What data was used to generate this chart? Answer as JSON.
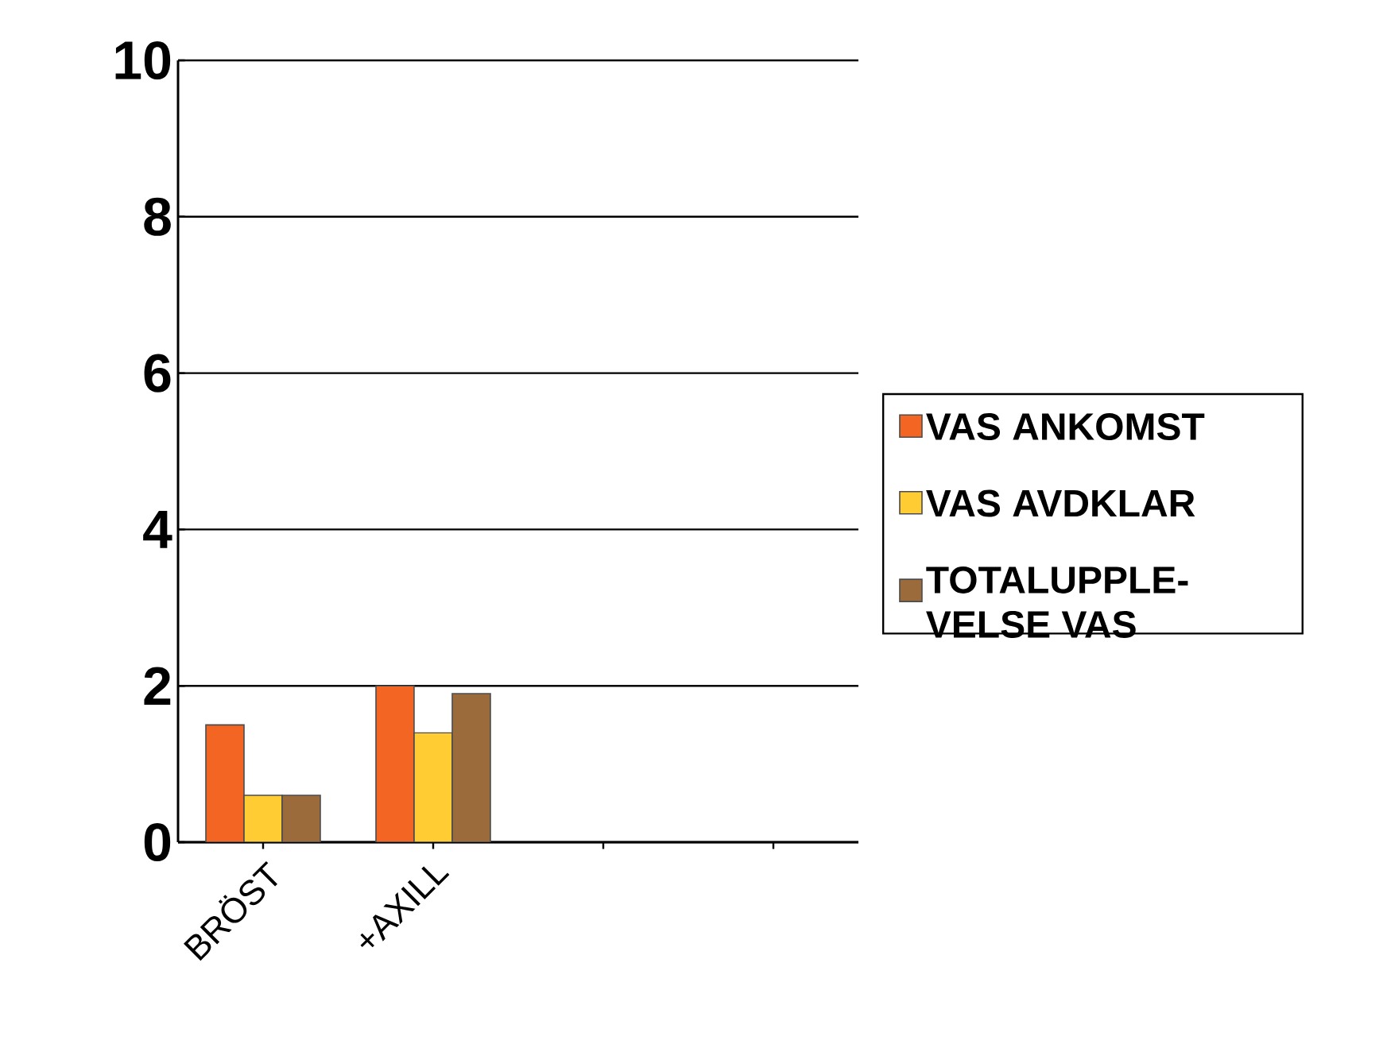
{
  "chart_data": {
    "type": "bar",
    "categories": [
      "BRÖST",
      "+AXILL",
      null,
      null
    ],
    "series": [
      {
        "name": "VAS ANKOMST",
        "color": "#f26522",
        "values": [
          1.5,
          2.0,
          null,
          null
        ]
      },
      {
        "name": "VAS AVDKLAR",
        "color": "#ffcc33",
        "values": [
          0.6,
          1.4,
          null,
          null
        ]
      },
      {
        "name": "TOTALUPPLE- VELSE VAS",
        "color": "#9c6b3c",
        "values": [
          0.6,
          1.9,
          null,
          null
        ]
      }
    ],
    "ylim": [
      0,
      10
    ],
    "yticks": [
      0,
      2,
      4,
      6,
      8,
      10
    ],
    "grid": "y",
    "legend": "right"
  }
}
